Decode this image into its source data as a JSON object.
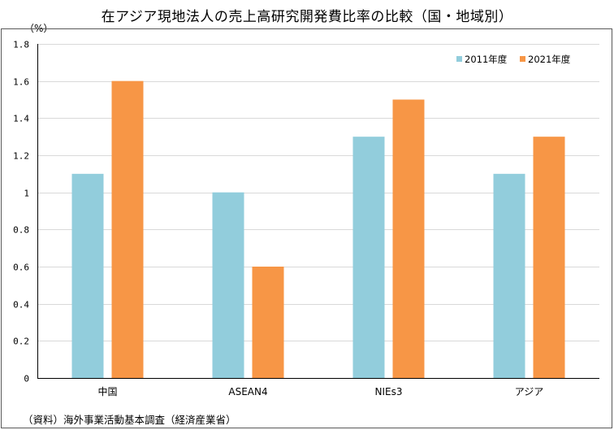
{
  "title": "在アジア現地法人の売上高研究開発費比率の比較（国・地域別）",
  "unit_label": "（%）",
  "source": "（資料）海外事業活動基本調査（経済産業省）",
  "colors": {
    "series_2011": "#92CDDC",
    "series_2021": "#F79646",
    "grid": "#D9D9D9",
    "axis": "#000000",
    "frame": "#595959"
  },
  "chart_data": {
    "type": "bar",
    "title": "在アジア現地法人の売上高研究開発費比率の比較（国・地域別）",
    "ylabel": "（%）",
    "xlabel": "",
    "categories": [
      "中国",
      "ASEAN4",
      "NIEs3",
      "アジア"
    ],
    "series": [
      {
        "name": "2011年度",
        "values": [
          1.1,
          1.0,
          1.3,
          1.1
        ]
      },
      {
        "name": "2021年度",
        "values": [
          1.6,
          0.6,
          1.5,
          1.3
        ]
      }
    ],
    "ylim": [
      0,
      1.8
    ],
    "yticks": [
      0,
      0.2,
      0.4,
      0.6,
      0.8,
      1,
      1.2,
      1.4,
      1.6,
      1.8
    ],
    "ytick_labels": [
      "0",
      "0.2",
      "0.4",
      "0.6",
      "0.8",
      "1",
      "1.2",
      "1.4",
      "1.6",
      "1.8"
    ],
    "grid": true,
    "legend_position": "top-right"
  }
}
